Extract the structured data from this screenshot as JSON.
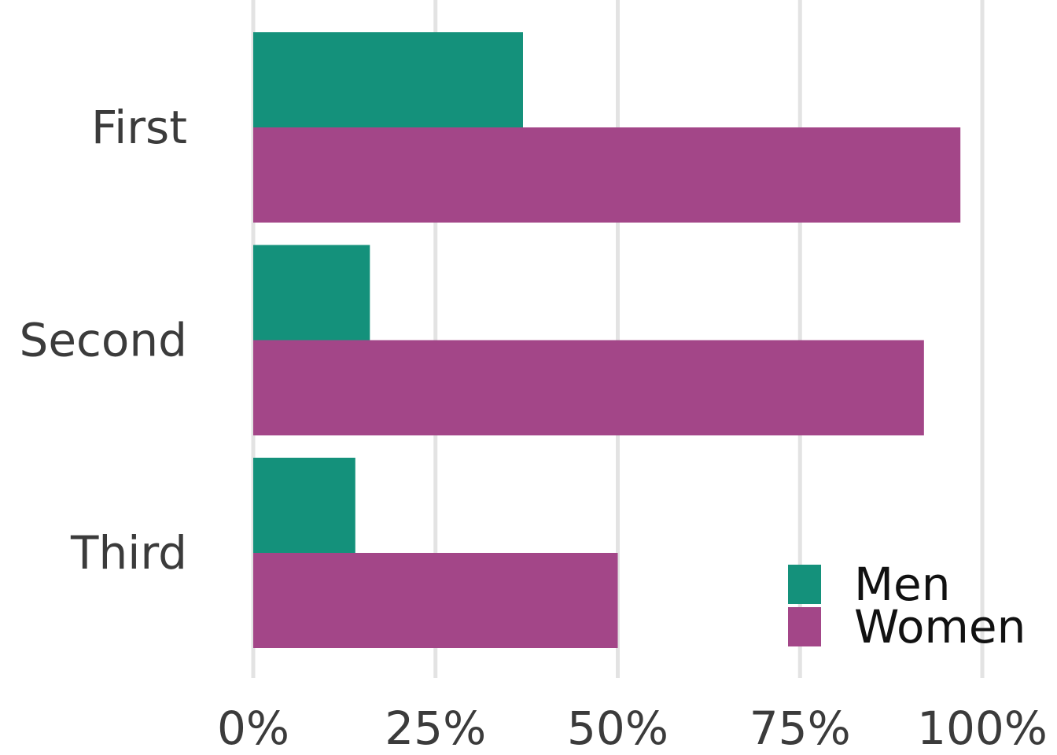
{
  "chart_data": {
    "type": "bar",
    "orientation": "horizontal",
    "categories": [
      "First",
      "Second",
      "Third"
    ],
    "series": [
      {
        "name": "Men",
        "color": "#14917b",
        "values": [
          37,
          16,
          14
        ]
      },
      {
        "name": "Women",
        "color": "#a34688",
        "values": [
          97,
          92,
          50
        ]
      }
    ],
    "xlim": [
      0,
      100
    ],
    "x_ticks": [
      0,
      25,
      50,
      75,
      100
    ],
    "x_tick_labels": [
      "0%",
      "25%",
      "50%",
      "75%",
      "100%"
    ],
    "title": "",
    "xlabel": "",
    "ylabel": "",
    "grid": "vertical major",
    "legend": {
      "position": "bottom-right",
      "entries": [
        "Men",
        "Women"
      ]
    }
  }
}
